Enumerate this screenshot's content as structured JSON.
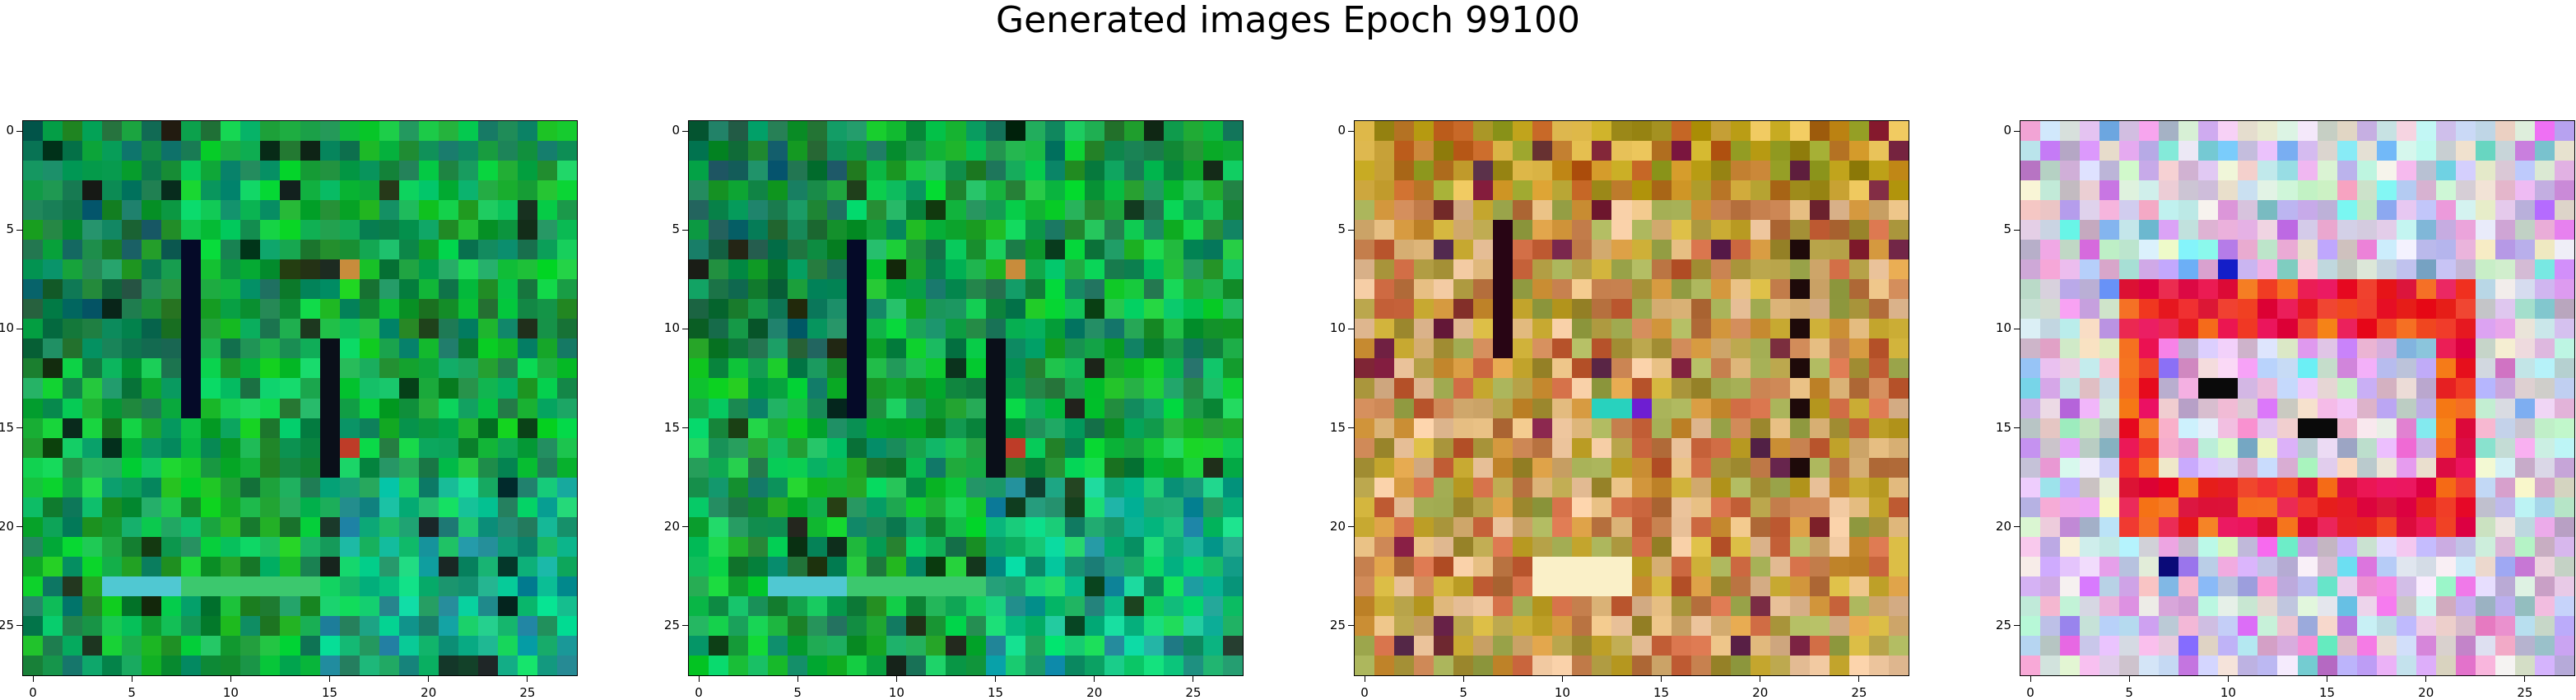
{
  "title": "Generated images Epoch 99100",
  "panels": [
    {
      "name": "image-panel-1",
      "palette": "greenA"
    },
    {
      "name": "image-panel-2",
      "palette": "greenB"
    },
    {
      "name": "image-panel-3",
      "palette": "earth"
    },
    {
      "name": "image-panel-4",
      "palette": "pastel"
    }
  ],
  "axis": {
    "x_ticks": [
      "0",
      "5",
      "10",
      "15",
      "20",
      "25"
    ],
    "y_ticks": [
      "0",
      "5",
      "10",
      "15",
      "20",
      "25"
    ],
    "range": [
      0,
      27
    ]
  },
  "colors": {
    "greenA_base": "#1a8a3a",
    "earth_base": "#c89a4a",
    "pastel_base": "#c8c0e0",
    "highlight_red": "#e01020"
  }
}
